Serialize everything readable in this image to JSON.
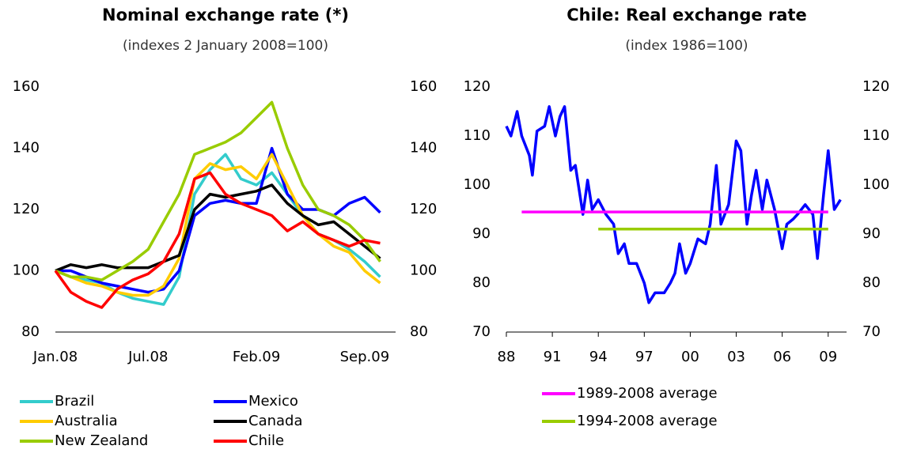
{
  "chart_data": [
    {
      "type": "line",
      "title": "Nominal exchange rate (*)",
      "subtitle": "(indexes 2 January 2008=100)",
      "categories": [
        "Jan.08",
        null,
        null,
        null,
        null,
        null,
        "Jul.08",
        null,
        null,
        null,
        null,
        null,
        null,
        "Feb.09",
        null,
        null,
        null,
        null,
        null,
        null,
        "Sep.09",
        null
      ],
      "series": [
        {
          "name": "Brazil",
          "color": "#33cccc",
          "values": [
            100,
            98,
            97,
            96,
            93,
            91,
            90,
            89,
            98,
            125,
            133,
            138,
            130,
            128,
            132,
            125,
            118,
            112,
            110,
            107,
            103,
            98
          ]
        },
        {
          "name": "Mexico",
          "color": "#0000ff",
          "values": [
            100,
            100,
            98,
            96,
            95,
            94,
            93,
            94,
            100,
            118,
            122,
            123,
            122,
            122,
            140,
            125,
            120,
            120,
            118,
            122,
            124,
            119
          ]
        },
        {
          "name": "Australia",
          "color": "#ffcc00",
          "values": [
            100,
            98,
            96,
            95,
            93,
            92,
            92,
            95,
            104,
            130,
            135,
            133,
            134,
            130,
            138,
            128,
            118,
            112,
            108,
            106,
            100,
            96
          ]
        },
        {
          "name": "Canada",
          "color": "#000000",
          "values": [
            100,
            102,
            101,
            102,
            101,
            101,
            101,
            103,
            105,
            120,
            125,
            124,
            125,
            126,
            128,
            122,
            118,
            115,
            116,
            112,
            108,
            104
          ]
        },
        {
          "name": "New Zealand",
          "color": "#99cc00",
          "values": [
            100,
            98,
            98,
            97,
            100,
            103,
            107,
            116,
            125,
            138,
            140,
            142,
            145,
            150,
            155,
            140,
            128,
            120,
            118,
            115,
            110,
            103
          ]
        },
        {
          "name": "Chile",
          "color": "#ff0000",
          "values": [
            100,
            93,
            90,
            88,
            94,
            97,
            99,
            103,
            112,
            130,
            132,
            125,
            122,
            120,
            118,
            113,
            116,
            112,
            110,
            108,
            110,
            109
          ]
        }
      ],
      "ylim": [
        80,
        160
      ],
      "yticks": [
        80,
        100,
        120,
        140,
        160
      ],
      "y2lim": [
        80,
        160
      ],
      "y2ticks": [
        80,
        100,
        120,
        140,
        160
      ],
      "legend": "bottom"
    },
    {
      "type": "line",
      "title": "Chile: Real exchange rate",
      "subtitle": "(index 1986=100)",
      "series": [
        {
          "name": null,
          "color": "#0000ff",
          "x": [
            1988.0,
            1988.3,
            1988.7,
            1989.0,
            1989.5,
            1989.7,
            1990.0,
            1990.5,
            1990.8,
            1991.2,
            1991.5,
            1991.8,
            1992.2,
            1992.5,
            1993.0,
            1993.3,
            1993.6,
            1994.0,
            1994.5,
            1995.0,
            1995.3,
            1995.7,
            1996.0,
            1996.5,
            1997.0,
            1997.3,
            1997.7,
            1998.3,
            1998.7,
            1999.0,
            1999.3,
            1999.7,
            2000.0,
            2000.5,
            2001.0,
            2001.3,
            2001.7,
            2002.0,
            2002.5,
            2003.0,
            2003.3,
            2003.7,
            2004.0,
            2004.3,
            2004.7,
            2005.0,
            2005.5,
            2006.0,
            2006.3,
            2006.7,
            2007.0,
            2007.5,
            2008.0,
            2008.3,
            2008.7,
            2009.0,
            2009.4,
            2009.8
          ],
          "values": [
            112,
            110,
            115,
            110,
            106,
            102,
            111,
            112,
            116,
            110,
            114,
            116,
            103,
            104,
            94,
            101,
            95,
            97,
            94,
            92,
            86,
            88,
            84,
            84,
            80,
            76,
            78,
            78,
            80,
            82,
            88,
            82,
            84,
            89,
            88,
            92,
            104,
            92,
            96,
            109,
            107,
            92,
            98,
            103,
            95,
            101,
            95,
            87,
            92,
            93,
            94,
            96,
            94,
            85,
            98,
            107,
            95,
            97
          ]
        },
        {
          "name": "1989-2008 average",
          "color": "#ff00ff",
          "x": [
            1989,
            2009
          ],
          "values": [
            94.5,
            94.5
          ]
        },
        {
          "name": "1994-2008 average",
          "color": "#99cc00",
          "x": [
            1994,
            2009
          ],
          "values": [
            91,
            91
          ]
        }
      ],
      "xlim": [
        1988,
        2010.2
      ],
      "xticks": [
        {
          "value": 1988,
          "label": "88"
        },
        {
          "value": 1991,
          "label": "91"
        },
        {
          "value": 1994,
          "label": "94"
        },
        {
          "value": 1997,
          "label": "97"
        },
        {
          "value": 2000,
          "label": "00"
        },
        {
          "value": 2003,
          "label": "03"
        },
        {
          "value": 2006,
          "label": "06"
        },
        {
          "value": 2009,
          "label": "09"
        }
      ],
      "ylim": [
        70,
        120
      ],
      "yticks": [
        70,
        80,
        90,
        100,
        110,
        120
      ],
      "y2lim": [
        70,
        120
      ],
      "y2ticks": [
        70,
        80,
        90,
        100,
        110,
        120
      ],
      "legend": "bottom"
    }
  ]
}
